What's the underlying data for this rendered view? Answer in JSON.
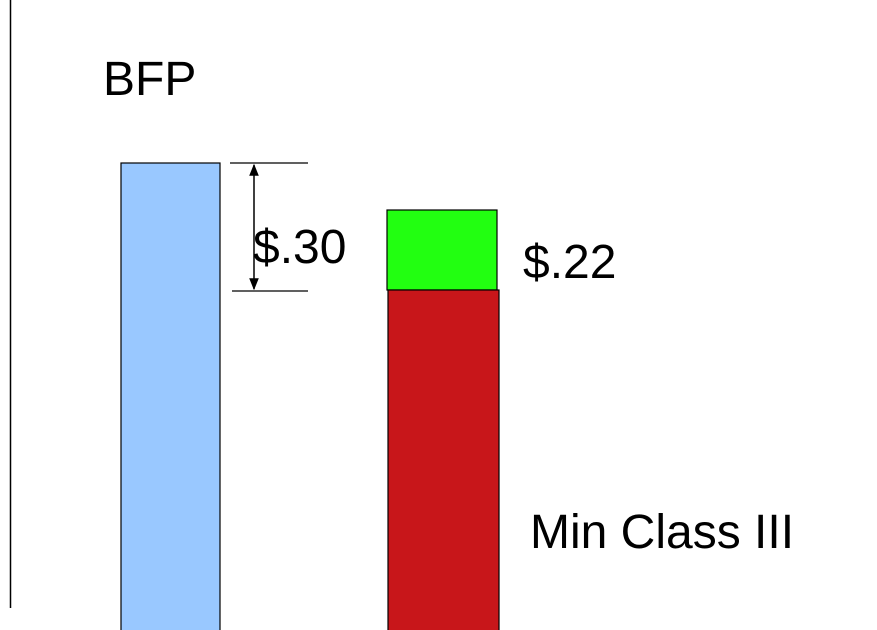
{
  "labels": {
    "title": "BFP",
    "difference": "$.30",
    "top_segment": "$.22",
    "bottom_segment": "Min Class III"
  }
}
